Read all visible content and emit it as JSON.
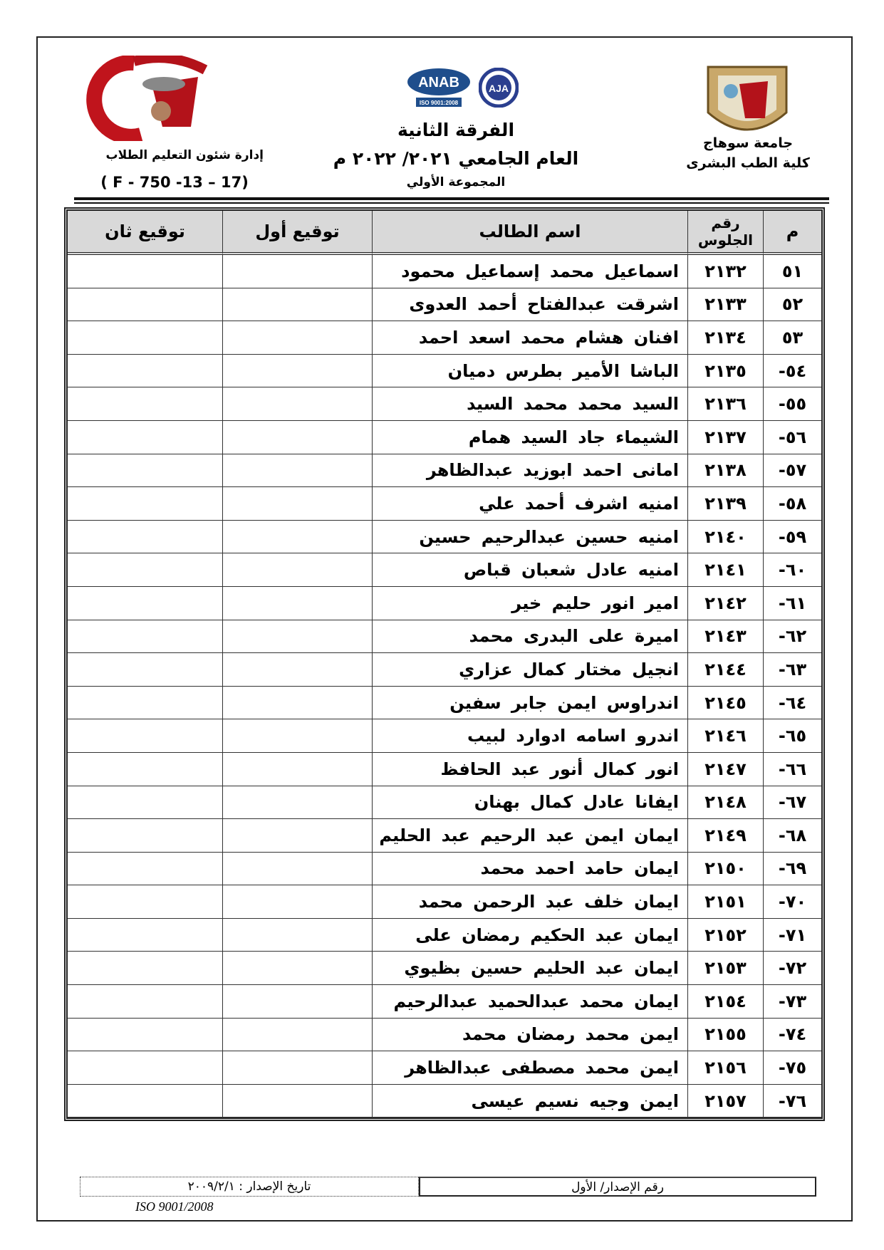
{
  "header": {
    "left_logo_text": "جامعة سوهاج كلية الطب",
    "left_dept": "إدارة شئون التعليم الطلاب",
    "form_code": "( F - 750 -13 – 17)",
    "accreditation_logos": [
      "ANAB",
      "ISO 9001:2008",
      "AJA"
    ],
    "year_level": "الفرقة الثانية",
    "academic_year": "العام الجامعي ٢٠٢١/ ٢٠٢٢ م",
    "group": "المجموعة الأولي",
    "university": "جامعة سوهاج",
    "faculty": "كلية الطب البشرى"
  },
  "table": {
    "columns": [
      "م",
      "رقم الجلوس",
      "اسم الطالب",
      "توقيع أول",
      "توقيع ثان"
    ],
    "rows": [
      {
        "no": "٥١",
        "seat": "٢١٣٢",
        "name": "اسماعيل محمد إسماعيل محمود"
      },
      {
        "no": "٥٢",
        "seat": "٢١٣٣",
        "name": "اشرقت عبدالفتاح أحمد العدوى"
      },
      {
        "no": "٥٣",
        "seat": "٢١٣٤",
        "name": "افنان هشام محمد اسعد احمد"
      },
      {
        "no": "٥٤-",
        "seat": "٢١٣٥",
        "name": "الباشا الأمير بطرس دميان"
      },
      {
        "no": "٥٥-",
        "seat": "٢١٣٦",
        "name": "السيد محمد محمد السيد"
      },
      {
        "no": "٥٦-",
        "seat": "٢١٣٧",
        "name": "الشيماء جاد السيد همام"
      },
      {
        "no": "٥٧-",
        "seat": "٢١٣٨",
        "name": "امانى احمد ابوزيد عبدالظاهر"
      },
      {
        "no": "٥٨-",
        "seat": "٢١٣٩",
        "name": "امنيه اشرف أحمد علي"
      },
      {
        "no": "٥٩-",
        "seat": "٢١٤٠",
        "name": "امنيه حسين عبدالرحيم حسين"
      },
      {
        "no": "٦٠-",
        "seat": "٢١٤١",
        "name": "امنيه عادل شعبان قباص"
      },
      {
        "no": "٦١-",
        "seat": "٢١٤٢",
        "name": "امير انور حليم خير"
      },
      {
        "no": "٦٢-",
        "seat": "٢١٤٣",
        "name": "اميرة على البدرى محمد"
      },
      {
        "no": "٦٣-",
        "seat": "٢١٤٤",
        "name": "انجيل مختار كمال عزاري"
      },
      {
        "no": "٦٤-",
        "seat": "٢١٤٥",
        "name": "اندراوس ايمن جابر سفين"
      },
      {
        "no": "٦٥-",
        "seat": "٢١٤٦",
        "name": "اندرو اسامه ادوارد لبيب"
      },
      {
        "no": "٦٦-",
        "seat": "٢١٤٧",
        "name": "انور كمال أنور عبد الحافظ"
      },
      {
        "no": "٦٧-",
        "seat": "٢١٤٨",
        "name": "ايفانا عادل كمال بهنان"
      },
      {
        "no": "٦٨-",
        "seat": "٢١٤٩",
        "name": "ايمان ايمن عبد الرحيم عبد الحليم"
      },
      {
        "no": "٦٩-",
        "seat": "٢١٥٠",
        "name": "ايمان حامد احمد محمد"
      },
      {
        "no": "٧٠-",
        "seat": "٢١٥١",
        "name": "ايمان خلف عبد الرحمن محمد"
      },
      {
        "no": "٧١-",
        "seat": "٢١٥٢",
        "name": "ايمان عبد الحكيم رمضان على"
      },
      {
        "no": "٧٢-",
        "seat": "٢١٥٣",
        "name": "ايمان عبد الحليم حسين بظيوي"
      },
      {
        "no": "٧٣-",
        "seat": "٢١٥٤",
        "name": "ايمان محمد عبدالحميد عبدالرحيم"
      },
      {
        "no": "٧٤-",
        "seat": "٢١٥٥",
        "name": "ايمن محمد رمضان محمد"
      },
      {
        "no": "٧٥-",
        "seat": "٢١٥٦",
        "name": "ايمن محمد مصطفى عبدالظاهر"
      },
      {
        "no": "٧٦-",
        "seat": "٢١٥٧",
        "name": "ايمن وجيه نسيم عيسى"
      }
    ]
  },
  "footer": {
    "issue_number": "رقم الإصدار/ الأول",
    "issue_date": "تاريخ الإصدار : ٢٠٠٩/٢/١",
    "iso": "ISO 9001/2008"
  }
}
